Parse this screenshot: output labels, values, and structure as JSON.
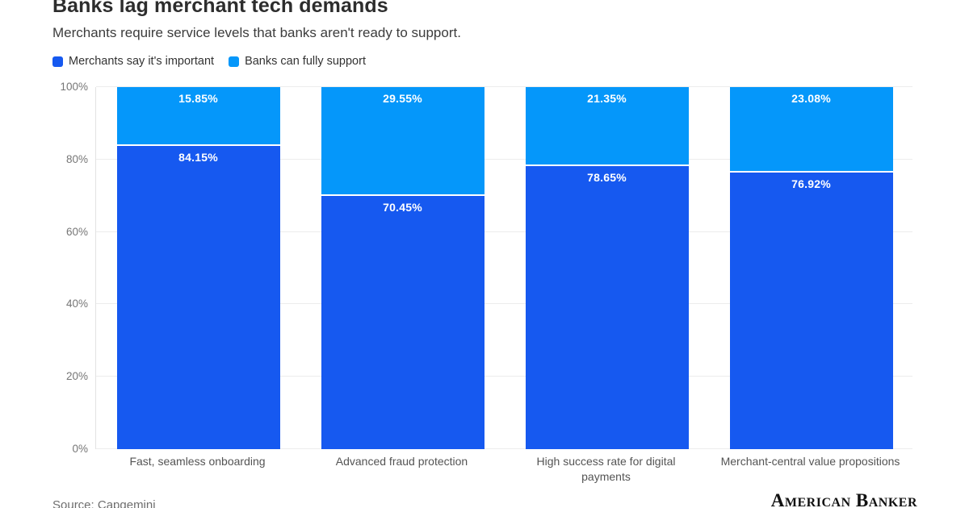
{
  "header": {
    "title": "Banks lag merchant tech demands",
    "subtitle": "Merchants require service levels that banks aren't ready to support."
  },
  "legend": [
    {
      "label": "Merchants say it's important",
      "color": "#1659f0"
    },
    {
      "label": "Banks can fully support",
      "color": "#0597fa"
    }
  ],
  "chart_data": {
    "type": "bar",
    "stacked": true,
    "title": "Banks lag merchant tech demands",
    "subtitle": "Merchants require service levels that banks aren't ready to support.",
    "categories": [
      "Fast, seamless onboarding",
      "Advanced fraud protection",
      "High success rate for digital payments",
      "Merchant-central value propositions"
    ],
    "series": [
      {
        "name": "Merchants say it's important",
        "color": "#1659f0",
        "values": [
          84.15,
          70.45,
          78.65,
          76.92
        ]
      },
      {
        "name": "Banks can fully support",
        "color": "#0597fa",
        "values": [
          15.85,
          29.55,
          21.35,
          23.08
        ]
      }
    ],
    "value_labels": [
      [
        "84.15%",
        "70.45%",
        "78.65%",
        "76.92%"
      ],
      [
        "15.85%",
        "29.55%",
        "21.35%",
        "23.08%"
      ]
    ],
    "ylabel": "",
    "xlabel": "",
    "ylim": [
      0,
      100
    ],
    "y_ticks": [
      "0%",
      "20%",
      "40%",
      "60%",
      "80%",
      "100%"
    ],
    "grid": true,
    "legend_position": "top",
    "grid_color": "#ececec",
    "value_label_color": "#ffffff"
  },
  "footer": {
    "source": "Source: Capgemini",
    "logo": "American Banker"
  }
}
